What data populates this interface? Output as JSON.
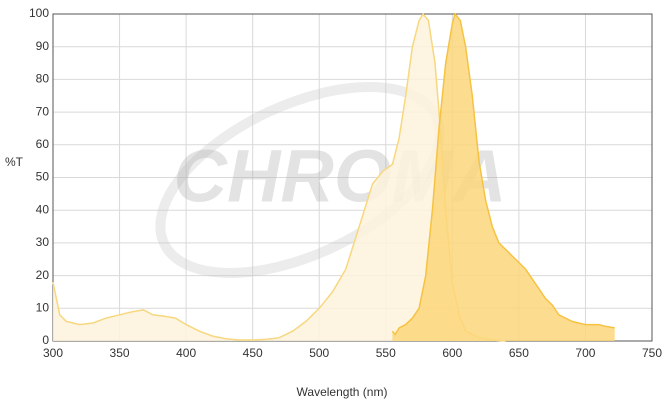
{
  "chart_data": {
    "type": "area",
    "watermark": "CHROMA",
    "xlabel": "Wavelength (nm)",
    "ylabel": "%T",
    "xlim": [
      300,
      750
    ],
    "xticks": [
      300,
      350,
      400,
      450,
      500,
      550,
      600,
      650,
      700,
      750
    ],
    "ylim": [
      0,
      100
    ],
    "yticks": [
      0,
      10,
      20,
      30,
      40,
      50,
      60,
      70,
      80,
      90,
      100
    ],
    "grid": true,
    "series": [
      {
        "color": "#f7d77f",
        "fill": "#fdf3dc",
        "x": [
          300,
          305,
          310,
          320,
          330,
          340,
          350,
          360,
          368,
          375,
          385,
          392,
          400,
          410,
          420,
          430,
          440,
          450,
          460,
          470,
          480,
          490,
          500,
          510,
          520,
          530,
          540,
          548,
          555,
          560,
          565,
          570,
          575,
          578,
          582,
          587,
          590,
          595,
          600,
          605,
          610,
          620,
          630,
          640
        ],
        "values": [
          18,
          8,
          6,
          5,
          5.5,
          7,
          8,
          9,
          9.5,
          8,
          7.5,
          7,
          5,
          3,
          1.5,
          0.7,
          0.3,
          0.3,
          0.5,
          1,
          3,
          6,
          10,
          15,
          22,
          35,
          48,
          52,
          54,
          62,
          75,
          90,
          98,
          100,
          98,
          85,
          70,
          40,
          18,
          8,
          3,
          1,
          0.3,
          0
        ]
      },
      {
        "color": "#f6c242",
        "fill": "#fbd67a",
        "x": [
          555,
          557,
          560,
          565,
          570,
          575,
          580,
          585,
          590,
          595,
          600,
          602,
          606,
          610,
          615,
          620,
          625,
          630,
          635,
          640,
          645,
          650,
          655,
          660,
          665,
          670,
          675,
          680,
          690,
          700,
          710,
          715,
          722
        ],
        "values": [
          3,
          2,
          4,
          5,
          7,
          10,
          20,
          40,
          65,
          85,
          97,
          100,
          98,
          90,
          75,
          55,
          43,
          35,
          30,
          28,
          26,
          24,
          22,
          19,
          16,
          13,
          11,
          8,
          6,
          5,
          5,
          4.5,
          4
        ]
      }
    ]
  }
}
